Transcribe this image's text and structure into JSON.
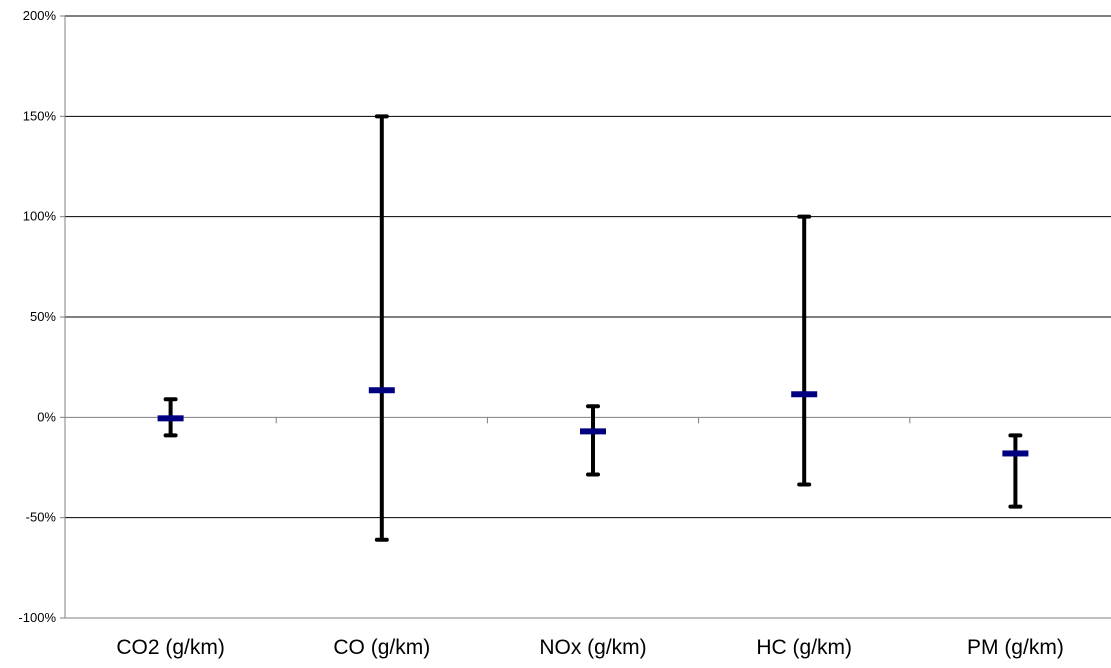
{
  "chart_data": {
    "type": "error-bar",
    "title": "",
    "xlabel": "",
    "ylabel": "",
    "categories": [
      "CO2 (g/km)",
      "CO (g/km)",
      "NOx (g/km)",
      "HC (g/km)",
      "PM (g/km)"
    ],
    "series": [
      {
        "values": [
          -0.5,
          13.5,
          -7,
          11.5,
          -18
        ],
        "upper": [
          9,
          150,
          5.5,
          100,
          -9
        ],
        "lower": [
          -9,
          -61,
          -28.5,
          -33.5,
          -44.5
        ]
      }
    ],
    "ylim": [
      -100,
      200
    ],
    "yticks": [
      -100,
      -50,
      0,
      50,
      100,
      150,
      200
    ],
    "ytick_labels": [
      "-100%",
      "-50%",
      "0%",
      "50%",
      "100%",
      "150%",
      "200%"
    ],
    "grid": true,
    "legend": "none",
    "colors": {
      "marker": "#000080",
      "error_bar": "#000000",
      "grid": "#000000",
      "axis": "#808080"
    }
  }
}
